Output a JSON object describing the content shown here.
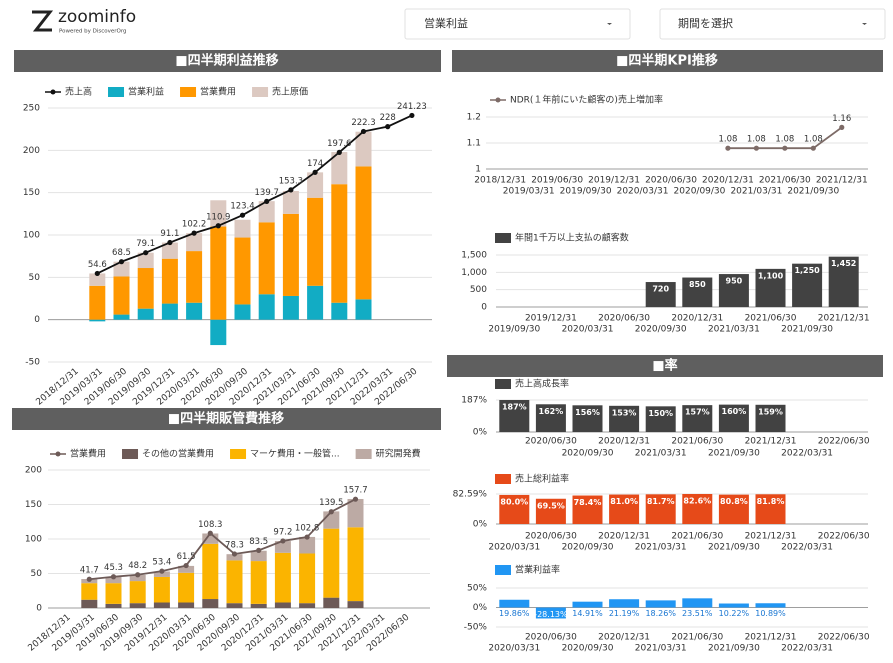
{
  "header": {
    "logo": "zoominfo",
    "tagline": "Powered by DiscoverOrg",
    "metric_select": "営業利益",
    "period_select": "期間を選択"
  },
  "sections": [
    "■四半期利益推移",
    "■四半期KPI推移",
    "■四半期販管費推移",
    "■率"
  ],
  "chart_data": [
    {
      "type": "combo",
      "categories": [
        "2018/12/31",
        "2019/03/31",
        "2019/06/30",
        "2019/09/30",
        "2019/12/31",
        "2020/03/31",
        "2020/06/30",
        "2020/09/30",
        "2020/12/31",
        "2021/03/31",
        "2021/06/30",
        "2021/09/30",
        "2021/12/31",
        "2022/03/31",
        "2022/06/30"
      ],
      "ylim": [
        -50,
        250
      ],
      "yticks": [
        -50,
        0,
        50,
        100,
        150,
        200,
        250
      ],
      "grid": true,
      "series": [
        {
          "name": "売上高",
          "type": "line",
          "color": "#111111",
          "values": [
            null,
            54.6,
            68.5,
            79.1,
            91.1,
            102.2,
            110.9,
            123.4,
            139.7,
            153.3,
            174,
            197.6,
            222.3,
            228,
            241.23
          ]
        },
        {
          "name": "営業利益",
          "type": "bar",
          "color": "#12acc4",
          "values": [
            null,
            -2,
            6,
            13,
            19,
            20,
            -30,
            18,
            30,
            28,
            40,
            20,
            24,
            null,
            null
          ]
        },
        {
          "name": "営業費用",
          "type": "bar",
          "color": "#ff9800",
          "values": [
            null,
            40,
            45,
            48,
            53,
            61,
            110,
            79,
            85,
            97,
            104,
            140,
            157,
            null,
            null
          ]
        },
        {
          "name": "売上原価",
          "type": "bar",
          "color": "#dcc9c1",
          "values": [
            null,
            14.6,
            17.5,
            18.1,
            19.1,
            21.2,
            31,
            21,
            25,
            27,
            30,
            38,
            41,
            null,
            null
          ]
        }
      ]
    },
    {
      "type": "combo",
      "categories": [
        "2018/12/31",
        "2019/03/31",
        "2019/06/30",
        "2019/09/30",
        "2019/12/31",
        "2020/03/31",
        "2020/06/30",
        "2020/09/30",
        "2020/12/31",
        "2021/03/31",
        "2021/06/30",
        "2021/09/30",
        "2021/12/31",
        "2022/03/31",
        "2022/06/30"
      ],
      "ylim": [
        0,
        200
      ],
      "yticks": [
        0,
        50,
        100,
        150,
        200
      ],
      "grid": true,
      "series": [
        {
          "name": "営業費用",
          "type": "line",
          "color": "#6d5a57",
          "values": [
            null,
            41.7,
            45.3,
            48.2,
            53.4,
            61.5,
            108.3,
            78.3,
            83.5,
            97.2,
            102.8,
            139.5,
            157.7,
            null,
            null
          ]
        },
        {
          "name": "その他の営業費用",
          "type": "bar",
          "color": "#6d5a57",
          "values": [
            null,
            12,
            6,
            7,
            8,
            8,
            13,
            7,
            6,
            8,
            7,
            15,
            10,
            null,
            null
          ]
        },
        {
          "name": "マーケ費用・一般管...",
          "type": "bar",
          "color": "#fbb400",
          "values": [
            null,
            24,
            30,
            32,
            37,
            43,
            80,
            62,
            62,
            72,
            72,
            100,
            107,
            null,
            null
          ]
        },
        {
          "name": "研究開発費",
          "type": "bar",
          "color": "#bcaaa4",
          "values": [
            null,
            6,
            9,
            9,
            8,
            10,
            15,
            9,
            15,
            17,
            24,
            25,
            41,
            null,
            null
          ]
        }
      ]
    },
    {
      "type": "line",
      "categories": [
        "2018/12/31",
        "2019/03/31",
        "2019/06/30",
        "2019/09/30",
        "2019/12/31",
        "2020/03/31",
        "2020/06/30",
        "2020/09/30",
        "2020/12/31",
        "2021/03/31",
        "2021/06/30",
        "2021/09/30",
        "2021/12/31"
      ],
      "ylim": [
        1,
        1.2
      ],
      "yticks": [
        1,
        1.1,
        1.2
      ],
      "grid": true,
      "series": [
        {
          "name": "NDR(１年前にいた顧客の)売上増加率",
          "type": "line",
          "color": "#7d6b67",
          "values": [
            null,
            null,
            null,
            null,
            null,
            null,
            null,
            null,
            1.08,
            1.08,
            1.08,
            1.08,
            1.16
          ]
        }
      ]
    },
    {
      "type": "bar",
      "categories": [
        "2019/09/30",
        "2019/12/31",
        "2020/03/31",
        "2020/06/30",
        "2020/09/30",
        "2020/12/31",
        "2021/03/31",
        "2021/06/30",
        "2021/09/30",
        "2021/12/31"
      ],
      "ylim": [
        0,
        1500
      ],
      "yticks": [
        0,
        500,
        {
          "value": 1000,
          "label": "1,000"
        },
        {
          "value": 1500,
          "label": "1,500"
        }
      ],
      "grid": true,
      "series": [
        {
          "name": "年間1千万以上支払の顧客数",
          "type": "bar",
          "color": "#424242",
          "values": [
            null,
            null,
            null,
            null,
            720,
            850,
            950,
            1100,
            1250,
            1452
          ],
          "value_labels": [
            null,
            null,
            null,
            null,
            "720",
            "850",
            "950",
            "1,100",
            "1,250",
            "1,452"
          ]
        }
      ]
    },
    {
      "type": "bar",
      "categories": [
        null,
        "2020/06/30",
        "2020/09/30",
        "2020/12/31",
        "2021/03/31",
        "2021/06/30",
        "2021/09/30",
        "2021/12/31",
        "2022/03/31",
        "2022/06/30"
      ],
      "ylim": [
        0,
        187
      ],
      "yticks": [
        {
          "value": 0,
          "label": "0%"
        },
        {
          "value": 187,
          "label": "187%"
        }
      ],
      "grid": true,
      "series": [
        {
          "name": "売上高成長率",
          "type": "bar",
          "color": "#424242",
          "values": [
            187,
            162,
            156,
            153,
            150,
            157,
            160,
            159,
            null,
            null
          ],
          "value_labels": [
            "187%",
            "162%",
            "156%",
            "153%",
            "150%",
            "157%",
            "160%",
            "159%",
            null,
            null
          ]
        }
      ]
    },
    {
      "type": "bar",
      "categories": [
        "2020/03/31",
        "2020/06/30",
        "2020/09/30",
        "2020/12/31",
        "2021/03/31",
        "2021/06/30",
        "2021/09/30",
        "2021/12/31",
        "2022/03/31",
        "2022/06/30"
      ],
      "ylim": [
        0,
        82.59
      ],
      "yticks": [
        {
          "value": 0,
          "label": "0%"
        },
        {
          "value": 82.59,
          "label": "82.59%"
        }
      ],
      "grid": true,
      "series": [
        {
          "name": "売上総利益率",
          "type": "bar",
          "color": "#e64a19",
          "values": [
            80.0,
            69.5,
            78.4,
            81.0,
            81.7,
            82.6,
            80.8,
            81.8,
            null,
            null
          ],
          "value_labels": [
            "80.0%",
            "69.5%",
            "78.4%",
            "81.0%",
            "81.7%",
            "82.6%",
            "80.8%",
            "81.8%",
            null,
            null
          ]
        }
      ]
    },
    {
      "type": "bar",
      "categories": [
        "2020/03/31",
        "2020/06/30",
        "2020/09/30",
        "2020/12/31",
        "2021/03/31",
        "2021/06/30",
        "2021/09/30",
        "2021/12/31",
        "2022/03/31",
        "2022/06/30"
      ],
      "ylim": [
        -50,
        50
      ],
      "yticks": [
        {
          "value": -50,
          "label": "-50%"
        },
        {
          "value": 0,
          "label": "0%"
        },
        {
          "value": 50,
          "label": "50%"
        }
      ],
      "grid": true,
      "series": [
        {
          "name": "営業利益率",
          "type": "bar",
          "color": "#2196f3",
          "values": [
            19.86,
            -28.13,
            14.91,
            21.19,
            18.26,
            23.51,
            10.22,
            10.89,
            null,
            null
          ],
          "value_labels": [
            "19.86%",
            "-28.13%",
            "14.91%",
            "21.19%",
            "18.26%",
            "23.51%",
            "10.22%",
            "10.89%",
            null,
            null
          ]
        }
      ]
    }
  ]
}
